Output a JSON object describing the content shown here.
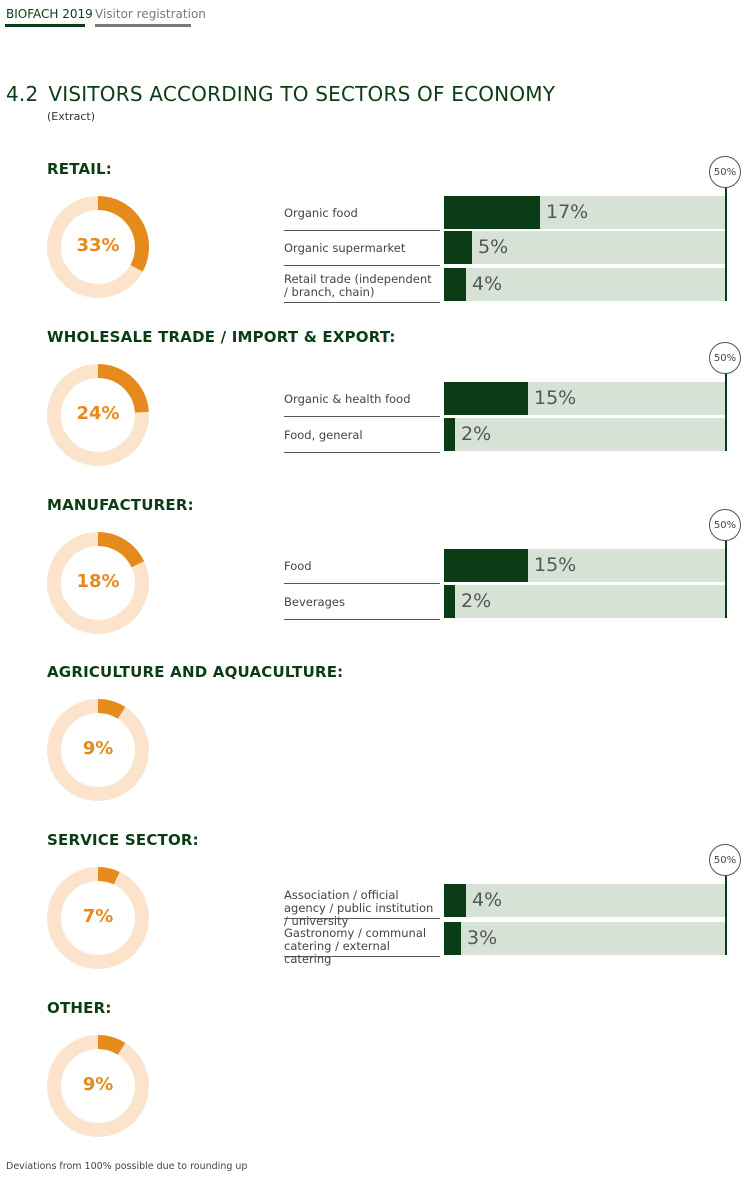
{
  "header": {
    "tab_event": "BIOFACH 2019",
    "tab_section": "Visitor registration"
  },
  "page": {
    "number": "4.2",
    "title": "VISITORS ACCORDING TO SECTORS OF ECONOMY",
    "subtitle": "(Extract)"
  },
  "footnote": "Deviations from 100% possible due to rounding up",
  "colors": {
    "dark_green": "#0a3d16",
    "light_green": "#d6e2d6",
    "orange": "#e68a1e",
    "pale_orange": "#fbe3cc"
  },
  "chart_data": [
    {
      "type": "pie",
      "title": "RETAIL:",
      "value": 33,
      "value_label": "33%",
      "bars": {
        "type": "bar",
        "orientation": "horizontal",
        "xlim": [
          0,
          50
        ],
        "reference_label": "50%",
        "categories": [
          "Organic food",
          "Organic supermarket",
          "Retail trade (independent / branch, chain)"
        ],
        "values": [
          17,
          5,
          4
        ],
        "value_labels": [
          "17%",
          "5%",
          "4%"
        ]
      }
    },
    {
      "type": "pie",
      "title": "WHOLESALE TRADE / IMPORT & EXPORT:",
      "value": 24,
      "value_label": "24%",
      "bars": {
        "type": "bar",
        "orientation": "horizontal",
        "xlim": [
          0,
          50
        ],
        "reference_label": "50%",
        "categories": [
          "Organic & health food",
          "Food, general"
        ],
        "values": [
          15,
          2
        ],
        "value_labels": [
          "15%",
          "2%"
        ]
      }
    },
    {
      "type": "pie",
      "title": "MANUFACTURER:",
      "value": 18,
      "value_label": "18%",
      "bars": {
        "type": "bar",
        "orientation": "horizontal",
        "xlim": [
          0,
          50
        ],
        "reference_label": "50%",
        "categories": [
          "Food",
          "Beverages"
        ],
        "values": [
          15,
          2
        ],
        "value_labels": [
          "15%",
          "2%"
        ]
      }
    },
    {
      "type": "pie",
      "title": "AGRICULTURE AND AQUACULTURE:",
      "value": 9,
      "value_label": "9%"
    },
    {
      "type": "pie",
      "title": "SERVICE SECTOR:",
      "value": 7,
      "value_label": "7%",
      "bars": {
        "type": "bar",
        "orientation": "horizontal",
        "xlim": [
          0,
          50
        ],
        "reference_label": "50%",
        "categories": [
          "Association / official agency / public institution / university",
          "Gastronomy / communal catering / external catering"
        ],
        "values": [
          4,
          3
        ],
        "value_labels": [
          "4%",
          "3%"
        ]
      }
    },
    {
      "type": "pie",
      "title": "OTHER:",
      "value": 9,
      "value_label": "9%"
    }
  ]
}
